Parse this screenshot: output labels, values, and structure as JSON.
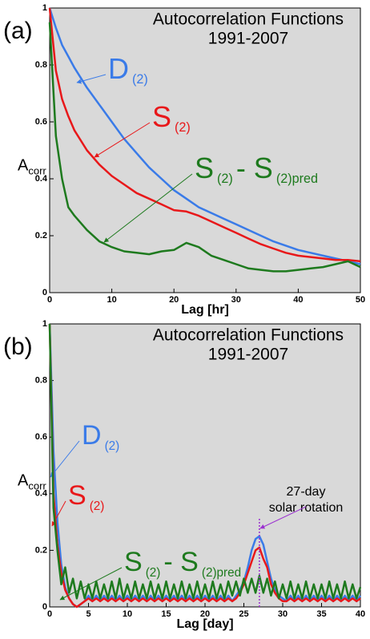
{
  "chart_data": [
    {
      "type": "line",
      "panel": "(a)",
      "title": [
        "Autocorrelation Functions",
        "1991-2007"
      ],
      "xlabel": "Lag    [hr]",
      "ylabel": [
        "A",
        "corr"
      ],
      "x": [
        0,
        1,
        2,
        3,
        4,
        6,
        8,
        10,
        12,
        14,
        16,
        18,
        20,
        22,
        24,
        26,
        28,
        30,
        32,
        34,
        36,
        38,
        40,
        42,
        44,
        46,
        48,
        50
      ],
      "xlim": [
        0,
        50
      ],
      "xticks": [
        0,
        10,
        20,
        30,
        40,
        50
      ],
      "ylim": [
        0,
        1
      ],
      "yticks": [
        0,
        0.2,
        0.4,
        0.6,
        0.8,
        1
      ],
      "series": [
        {
          "label": [
            "D",
            "(2)"
          ],
          "color": "#3a7be8",
          "values": [
            1,
            0.93,
            0.87,
            0.83,
            0.79,
            0.72,
            0.66,
            0.6,
            0.54,
            0.49,
            0.44,
            0.4,
            0.36,
            0.33,
            0.3,
            0.28,
            0.26,
            0.24,
            0.22,
            0.2,
            0.18,
            0.165,
            0.15,
            0.14,
            0.13,
            0.12,
            0.11,
            0.1
          ]
        },
        {
          "label": [
            "S",
            "(2)"
          ],
          "color": "#e8181a",
          "values": [
            1,
            0.78,
            0.68,
            0.62,
            0.57,
            0.5,
            0.45,
            0.41,
            0.38,
            0.35,
            0.33,
            0.31,
            0.29,
            0.285,
            0.27,
            0.25,
            0.23,
            0.21,
            0.19,
            0.17,
            0.155,
            0.14,
            0.13,
            0.125,
            0.12,
            0.115,
            0.115,
            0.11
          ]
        },
        {
          "label": [
            "S",
            "(2)",
            "- S",
            "(2)pred"
          ],
          "color": "#1e7a1e",
          "values": [
            0.95,
            0.55,
            0.4,
            0.3,
            0.27,
            0.22,
            0.18,
            0.16,
            0.145,
            0.14,
            0.135,
            0.145,
            0.15,
            0.175,
            0.16,
            0.13,
            0.115,
            0.1,
            0.085,
            0.08,
            0.075,
            0.075,
            0.08,
            0.085,
            0.09,
            0.1,
            0.11,
            0.09
          ]
        }
      ]
    },
    {
      "type": "line",
      "panel": "(b)",
      "title": [
        "Autocorrelation Functions",
        "1991-2007"
      ],
      "xlabel": "Lag    [day]",
      "ylabel": [
        "A",
        "corr"
      ],
      "x": [
        0,
        0.5,
        1,
        1.5,
        2,
        2.5,
        3,
        3.5,
        4,
        4.5,
        5,
        5.5,
        6,
        6.5,
        7,
        7.5,
        8,
        8.5,
        9,
        9.5,
        10,
        10.5,
        11,
        11.5,
        12,
        12.5,
        13,
        13.5,
        14,
        14.5,
        15,
        15.5,
        16,
        16.5,
        17,
        17.5,
        18,
        18.5,
        19,
        19.5,
        20,
        20.5,
        21,
        21.5,
        22,
        22.5,
        23,
        23.5,
        24,
        24.5,
        25,
        25.5,
        26,
        26.5,
        27,
        27.5,
        28,
        28.5,
        29,
        29.5,
        30,
        30.5,
        31,
        31.5,
        32,
        32.5,
        33,
        33.5,
        34,
        34.5,
        35,
        35.5,
        36,
        36.5,
        37,
        37.5,
        38,
        38.5,
        39,
        39.5,
        40
      ],
      "xlim": [
        0,
        40
      ],
      "xticks": [
        0,
        5,
        10,
        15,
        20,
        25,
        30,
        35,
        40
      ],
      "ylim": [
        0,
        1
      ],
      "yticks": [
        0,
        0.2,
        0.4,
        0.6,
        0.8,
        1
      ],
      "annotation": {
        "lines": [
          "27-day",
          "solar rotation"
        ],
        "x": 27,
        "color": "#9b30d0"
      },
      "series": [
        {
          "label": [
            "D",
            "(2)"
          ],
          "color": "#3a7be8",
          "values": [
            1,
            0.55,
            0.3,
            0.15,
            0.07,
            0.03,
            0.01,
            0,
            0.01,
            0.02,
            0.04,
            0.02,
            0.04,
            0.02,
            0.04,
            0.02,
            0.04,
            0.02,
            0.04,
            0.02,
            0.04,
            0.02,
            0.04,
            0.02,
            0.04,
            0.02,
            0.04,
            0.02,
            0.04,
            0.02,
            0.04,
            0.02,
            0.04,
            0.02,
            0.04,
            0.02,
            0.04,
            0.02,
            0.04,
            0.02,
            0.04,
            0.02,
            0.04,
            0.02,
            0.04,
            0.02,
            0.04,
            0.02,
            0.04,
            0.06,
            0.09,
            0.14,
            0.2,
            0.24,
            0.25,
            0.22,
            0.16,
            0.1,
            0.06,
            0.04,
            0.03,
            0.02,
            0.04,
            0.02,
            0.04,
            0.02,
            0.04,
            0.02,
            0.04,
            0.02,
            0.04,
            0.02,
            0.04,
            0.02,
            0.04,
            0.02,
            0.04,
            0.02,
            0.04,
            0.02,
            0.04
          ]
        },
        {
          "label": [
            "S",
            "(2)"
          ],
          "color": "#e8181a",
          "values": [
            1,
            0.4,
            0.22,
            0.12,
            0.06,
            0.03,
            0.01,
            0,
            0.01,
            0.02,
            0.03,
            0.02,
            0.03,
            0.02,
            0.03,
            0.02,
            0.03,
            0.02,
            0.03,
            0.02,
            0.03,
            0.02,
            0.03,
            0.02,
            0.03,
            0.02,
            0.03,
            0.02,
            0.03,
            0.02,
            0.03,
            0.02,
            0.03,
            0.02,
            0.03,
            0.02,
            0.03,
            0.02,
            0.03,
            0.02,
            0.03,
            0.02,
            0.03,
            0.02,
            0.03,
            0.02,
            0.03,
            0.02,
            0.03,
            0.05,
            0.08,
            0.12,
            0.16,
            0.2,
            0.21,
            0.17,
            0.14,
            0.08,
            0.05,
            0.03,
            0.02,
            0.02,
            0.03,
            0.02,
            0.03,
            0.02,
            0.03,
            0.02,
            0.03,
            0.02,
            0.03,
            0.02,
            0.03,
            0.02,
            0.03,
            0.02,
            0.03,
            0.02,
            0.03,
            0.02,
            0.03
          ]
        },
        {
          "label": [
            "S",
            "(2)",
            "- S",
            "(2)pred"
          ],
          "color": "#1e7a1e",
          "values": [
            1,
            0.35,
            0.2,
            0.08,
            0.14,
            0.05,
            0.1,
            0.03,
            0.09,
            0.03,
            0.08,
            0.03,
            0.09,
            0.03,
            0.08,
            0.03,
            0.09,
            0.03,
            0.1,
            0.03,
            0.08,
            0.03,
            0.09,
            0.03,
            0.08,
            0.03,
            0.09,
            0.03,
            0.08,
            0.03,
            0.09,
            0.03,
            0.08,
            0.03,
            0.09,
            0.03,
            0.08,
            0.03,
            0.09,
            0.03,
            0.08,
            0.03,
            0.09,
            0.03,
            0.08,
            0.03,
            0.09,
            0.04,
            0.09,
            0.04,
            0.1,
            0.05,
            0.1,
            0.05,
            0.11,
            0.05,
            0.1,
            0.04,
            0.09,
            0.03,
            0.08,
            0.03,
            0.09,
            0.03,
            0.08,
            0.03,
            0.09,
            0.03,
            0.08,
            0.03,
            0.08,
            0.03,
            0.09,
            0.03,
            0.08,
            0.03,
            0.09,
            0.03,
            0.08,
            0.03,
            0.07
          ]
        }
      ]
    }
  ]
}
